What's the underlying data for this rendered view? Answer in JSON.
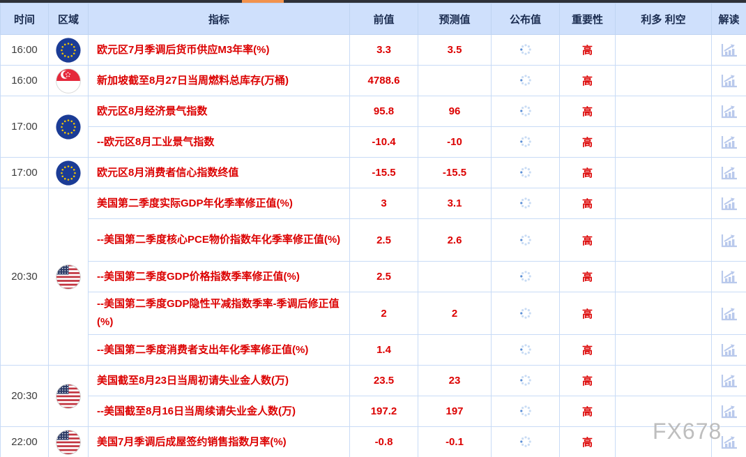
{
  "watermark": "FX678",
  "colors": {
    "accent_red": "#dc0000",
    "header_bg": "#cfe0fc",
    "header_text": "#1b2c50",
    "grid_line": "#c8dbf6",
    "topbar": "#2e3138",
    "scroll_thumb": "#f2924d",
    "icon_blue": "#b9c9ec",
    "spinner_dot": "#c9dcf4",
    "spinner_dot_active": "#5b8fd6"
  },
  "table": {
    "columns": [
      {
        "key": "time",
        "label": "时间"
      },
      {
        "key": "region",
        "label": "区域"
      },
      {
        "key": "indicator",
        "label": "指标"
      },
      {
        "key": "previous",
        "label": "前值"
      },
      {
        "key": "forecast",
        "label": "预测值"
      },
      {
        "key": "published",
        "label": "公布值"
      },
      {
        "key": "importance",
        "label": "重要性"
      },
      {
        "key": "direction",
        "label": "利多 利空"
      },
      {
        "key": "interpret",
        "label": "解读"
      }
    ],
    "groups": [
      {
        "time": "16:00",
        "region": "eu",
        "rows": [
          {
            "indicator": "欧元区7月季调后货币供应M3年率(%)",
            "previous": "3.3",
            "forecast": "3.5",
            "published": "loading",
            "importance": "高",
            "direction": "",
            "tall": false
          }
        ]
      },
      {
        "time": "16:00",
        "region": "sg",
        "rows": [
          {
            "indicator": "新加坡截至8月27日当周燃料总库存(万桶)",
            "previous": "4788.6",
            "forecast": "",
            "published": "loading",
            "importance": "高",
            "direction": "",
            "tall": false
          }
        ]
      },
      {
        "time": "17:00",
        "region": "eu",
        "rows": [
          {
            "indicator": "欧元区8月经济景气指数",
            "previous": "95.8",
            "forecast": "96",
            "published": "loading",
            "importance": "高",
            "direction": "",
            "tall": false
          },
          {
            "indicator": "--欧元区8月工业景气指数",
            "previous": "-10.4",
            "forecast": "-10",
            "published": "loading",
            "importance": "高",
            "direction": "",
            "tall": false
          }
        ]
      },
      {
        "time": "17:00",
        "region": "eu",
        "rows": [
          {
            "indicator": "欧元区8月消费者信心指数终值",
            "previous": "-15.5",
            "forecast": "-15.5",
            "published": "loading",
            "importance": "高",
            "direction": "",
            "tall": false
          }
        ]
      },
      {
        "time": "20:30",
        "region": "us",
        "rows": [
          {
            "indicator": "美国第二季度实际GDP年化季率修正值(%)",
            "previous": "3",
            "forecast": "3.1",
            "published": "loading",
            "importance": "高",
            "direction": "",
            "tall": false
          },
          {
            "indicator": "--美国第二季度核心PCE物价指数年化季率修正值(%)",
            "previous": "2.5",
            "forecast": "2.6",
            "published": "loading",
            "importance": "高",
            "direction": "",
            "tall": true
          },
          {
            "indicator": "--美国第二季度GDP价格指数季率修正值(%)",
            "previous": "2.5",
            "forecast": "",
            "published": "loading",
            "importance": "高",
            "direction": "",
            "tall": false
          },
          {
            "indicator": "--美国第二季度GDP隐性平减指数季率-季调后修正值(%)",
            "previous": "2",
            "forecast": "2",
            "published": "loading",
            "importance": "高",
            "direction": "",
            "tall": true
          },
          {
            "indicator": "--美国第二季度消费者支出年化季率修正值(%)",
            "previous": "1.4",
            "forecast": "",
            "published": "loading",
            "importance": "高",
            "direction": "",
            "tall": false
          }
        ]
      },
      {
        "time": "20:30",
        "region": "us",
        "rows": [
          {
            "indicator": "美国截至8月23日当周初请失业金人数(万)",
            "previous": "23.5",
            "forecast": "23",
            "published": "loading",
            "importance": "高",
            "direction": "",
            "tall": false
          },
          {
            "indicator": "--美国截至8月16日当周续请失业金人数(万)",
            "previous": "197.2",
            "forecast": "197",
            "published": "loading",
            "importance": "高",
            "direction": "",
            "tall": false
          }
        ]
      },
      {
        "time": "22:00",
        "region": "us",
        "rows": [
          {
            "indicator": "美国7月季调后成屋签约销售指数月率(%)",
            "previous": "-0.8",
            "forecast": "-0.1",
            "published": "loading",
            "importance": "高",
            "direction": "",
            "tall": false
          }
        ]
      }
    ]
  },
  "regions": {
    "eu": "eu-flag",
    "sg": "singapore-flag",
    "us": "us-flag"
  }
}
